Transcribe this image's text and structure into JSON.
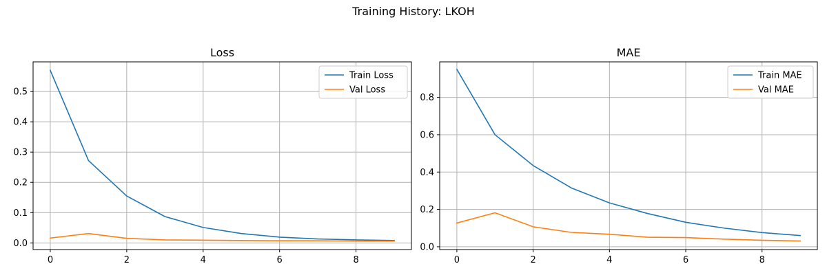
{
  "figure": {
    "suptitle": "Training History: LKOH"
  },
  "chart_data": [
    {
      "type": "line",
      "title": "Loss",
      "xlabel": "",
      "ylabel": "",
      "x": [
        0,
        1,
        2,
        3,
        4,
        5,
        6,
        7,
        8,
        9
      ],
      "xlim": [
        -0.45,
        9.45
      ],
      "ylim": [
        -0.022,
        0.598
      ],
      "xticks": [
        0,
        2,
        4,
        6,
        8
      ],
      "xtick_labels": [
        "0",
        "2",
        "4",
        "6",
        "8"
      ],
      "yticks": [
        0.0,
        0.1,
        0.2,
        0.3,
        0.4,
        0.5
      ],
      "ytick_labels": [
        "0.0",
        "0.1",
        "0.2",
        "0.3",
        "0.4",
        "0.5"
      ],
      "grid": true,
      "legend_position": "top-right",
      "series": [
        {
          "name": "Train Loss",
          "color": "#1f77b4",
          "values": [
            0.57,
            0.272,
            0.155,
            0.087,
            0.051,
            0.031,
            0.019,
            0.013,
            0.01,
            0.008
          ]
        },
        {
          "name": "Val Loss",
          "color": "#ff7f0e",
          "values": [
            0.016,
            0.031,
            0.015,
            0.01,
            0.009,
            0.008,
            0.007,
            0.007,
            0.006,
            0.006
          ]
        }
      ]
    },
    {
      "type": "line",
      "title": "MAE",
      "xlabel": "",
      "ylabel": "",
      "x": [
        0,
        1,
        2,
        3,
        4,
        5,
        6,
        7,
        8,
        9
      ],
      "xlim": [
        -0.45,
        9.45
      ],
      "ylim": [
        -0.015,
        0.99
      ],
      "xticks": [
        0,
        2,
        4,
        6,
        8
      ],
      "xtick_labels": [
        "0",
        "2",
        "4",
        "6",
        "8"
      ],
      "yticks": [
        0.0,
        0.2,
        0.4,
        0.6,
        0.8
      ],
      "ytick_labels": [
        "0.0",
        "0.2",
        "0.4",
        "0.6",
        "0.8"
      ],
      "grid": true,
      "legend_position": "top-right",
      "series": [
        {
          "name": "Train MAE",
          "color": "#1f77b4",
          "values": [
            0.95,
            0.6,
            0.435,
            0.315,
            0.235,
            0.178,
            0.131,
            0.1,
            0.076,
            0.06
          ]
        },
        {
          "name": "Val MAE",
          "color": "#ff7f0e",
          "values": [
            0.127,
            0.182,
            0.107,
            0.077,
            0.067,
            0.051,
            0.049,
            0.041,
            0.035,
            0.031
          ]
        }
      ]
    }
  ]
}
